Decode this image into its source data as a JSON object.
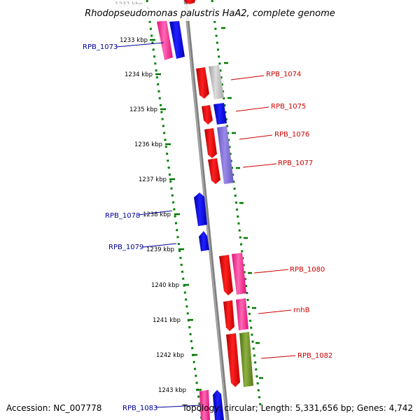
{
  "title": "Rhodopseudomonas palustris HaA2, complete genome",
  "footer": {
    "accession": "Accession: NC_007778",
    "summary": "Topology: circular; Length: 5,331,656 bp; Genes: 4,742"
  },
  "scale": {
    "top_label": "1232 kbp",
    "ticks": [
      "1233 kbp",
      "1234 kbp",
      "1235 kbp",
      "1236 kbp",
      "1237 kbp",
      "1238 kbp",
      "1239 kbp",
      "1240 kbp",
      "1241 kbp",
      "1242 kbp",
      "1243 kbp"
    ]
  },
  "genes_left": [
    {
      "label": "RPB_1073"
    },
    {
      "label": "RPB_1078"
    },
    {
      "label": "RPB_1079"
    },
    {
      "label": "RPB_1083"
    }
  ],
  "genes_right": [
    {
      "label": "RPB_1074"
    },
    {
      "label": "RPB_1075"
    },
    {
      "label": "RPB_1076"
    },
    {
      "label": "RPB_1077"
    },
    {
      "label": "RPB_1080"
    },
    {
      "label": "rnhB"
    },
    {
      "label": "RPB_1082"
    }
  ],
  "colors": {
    "forward_label": "#cc0000",
    "reverse_label": "#000099",
    "backbone": "#808080",
    "dotted_guide": "#008000",
    "tick": "#007700",
    "red_feature": "#ff0000",
    "blue_feature": "#0000ff",
    "pink_feature": "#ff1493",
    "gray_feature": "#b8b8b8",
    "purple_feature": "#7b68d0",
    "olive_feature": "#6b8e23"
  }
}
